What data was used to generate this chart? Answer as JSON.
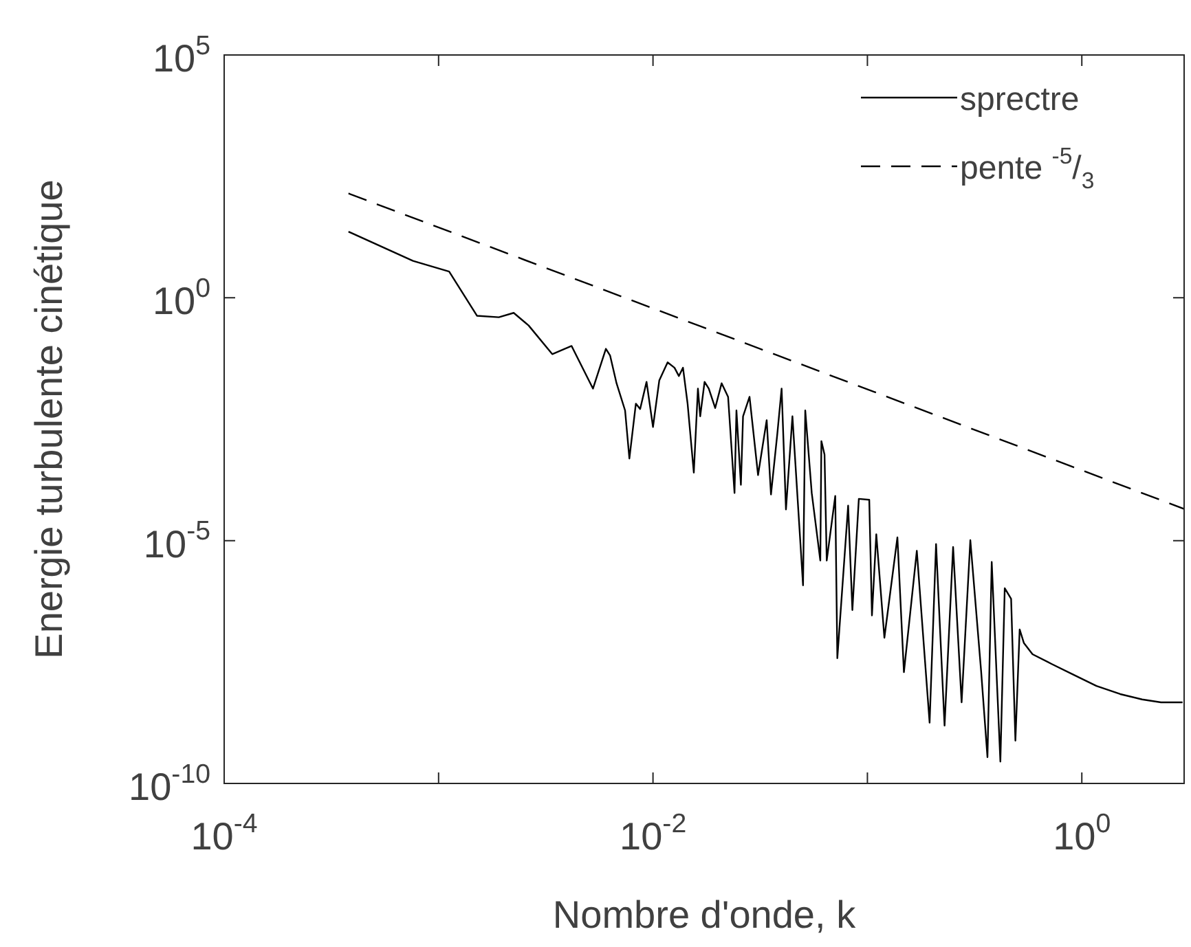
{
  "chart_data": {
    "type": "line",
    "xlabel": "Nombre d'onde, k",
    "ylabel": "Energie turbulente cinétique",
    "log": "xy",
    "xlim": [
      0.0001,
      3
    ],
    "ylim": [
      1e-10,
      100000
    ],
    "xticks": [
      {
        "value": 0.0001,
        "label": "10$^{-4}$"
      },
      {
        "value": 0.001,
        "label": null
      },
      {
        "value": 0.01,
        "label": "10$^{-2}$"
      },
      {
        "value": 0.1,
        "label": null
      },
      {
        "value": 1,
        "label": "10$^{0}$"
      }
    ],
    "yticks": [
      {
        "value": 1e-10,
        "label": "10$^{-10}$"
      },
      {
        "value": 1e-05,
        "label": "10$^{-5}$"
      },
      {
        "value": 1,
        "label": "10$^{0}$"
      },
      {
        "value": 100000,
        "label": "10$^{5}$"
      }
    ],
    "legend": "top right",
    "marker": "none",
    "grid": false,
    "series": [
      {
        "name": "sprectre",
        "color": "#000000",
        "line_style": "solid",
        "x": [
          0.00038,
          0.00076,
          0.00112,
          0.00151,
          0.00191,
          0.00224,
          0.00263,
          0.00339,
          0.00417,
          0.00525,
          0.00603,
          0.00631,
          0.00676,
          0.00741,
          0.00776,
          0.00832,
          0.00871,
          0.00933,
          0.01,
          0.0107,
          0.0117,
          0.0126,
          0.0132,
          0.0138,
          0.0145,
          0.0155,
          0.0162,
          0.0166,
          0.0174,
          0.0182,
          0.0195,
          0.0209,
          0.0224,
          0.024,
          0.0245,
          0.0257,
          0.0263,
          0.0282,
          0.0309,
          0.0339,
          0.0355,
          0.038,
          0.0398,
          0.0417,
          0.0447,
          0.0501,
          0.0513,
          0.055,
          0.0603,
          0.061,
          0.0631,
          0.0646,
          0.0708,
          0.0724,
          0.0813,
          0.0851,
          0.0912,
          0.102,
          0.105,
          0.11,
          0.12,
          0.138,
          0.148,
          0.17,
          0.195,
          0.209,
          0.229,
          0.251,
          0.275,
          0.302,
          0.339,
          0.363,
          0.38,
          0.417,
          0.437,
          0.468,
          0.49,
          0.513,
          0.537,
          0.589,
          0.724,
          0.912,
          1.17,
          1.51,
          1.91,
          2.34,
          2.95
        ],
        "values": [
          23,
          5.75,
          3.47,
          0.427,
          0.398,
          0.49,
          0.269,
          0.0692,
          0.102,
          0.0135,
          0.0891,
          0.0646,
          0.0174,
          0.00479,
          0.00049,
          0.00661,
          0.00513,
          0.0186,
          0.00219,
          0.02,
          0.0468,
          0.0363,
          0.0245,
          0.0363,
          0.00661,
          0.000251,
          0.0135,
          0.00363,
          0.0186,
          0.0135,
          0.00537,
          0.0174,
          0.00912,
          9.55e-05,
          0.00479,
          0.000141,
          0.00363,
          0.00912,
          0.000224,
          0.00302,
          8.91e-05,
          0.00158,
          0.0135,
          4.37e-05,
          0.00363,
          1.2e-06,
          0.00479,
          9.55e-05,
          3.89e-06,
          0.00112,
          0.000589,
          3.89e-06,
          8.32e-05,
          3.8e-08,
          5.25e-05,
          3.72e-07,
          7.24e-05,
          6.92e-05,
          2.88e-07,
          1.35e-05,
          1e-07,
          1.17e-05,
          1.95e-08,
          6.17e-06,
          1.78e-09,
          8.51e-06,
          1.55e-09,
          7.41e-06,
          4.68e-09,
          1.02e-05,
          2.09e-08,
          3.47e-10,
          3.63e-06,
          2.82e-10,
          1.05e-06,
          6.31e-07,
          7.59e-10,
          1.48e-07,
          7.76e-08,
          4.57e-08,
          2.88e-08,
          1.74e-08,
          1.02e-08,
          6.92e-09,
          5.37e-09,
          4.68e-09,
          4.68e-09
        ]
      },
      {
        "name": "pente $^{-5}$/$_{3}$",
        "color": "#000000",
        "line_style": "dashed",
        "x": [
          0.00038,
          3
        ],
        "values": [
          141,
          4.5e-05
        ]
      }
    ]
  }
}
